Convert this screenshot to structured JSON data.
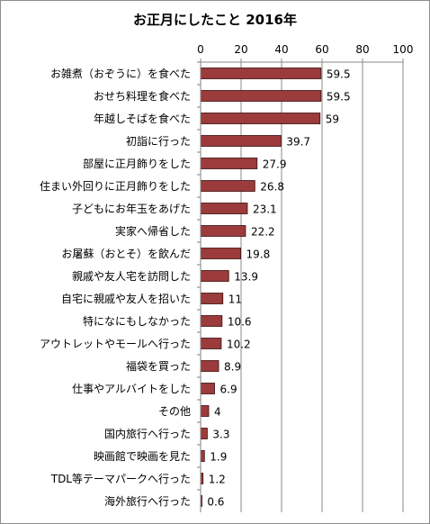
{
  "chart_data": {
    "type": "bar",
    "orientation": "horizontal",
    "title": "お正月にしたこと 2016年",
    "xlim": [
      0,
      100
    ],
    "xticks": [
      0,
      20,
      40,
      60,
      80,
      100
    ],
    "grid": true,
    "bar_color": "#9b3b3b",
    "categories": [
      "お雑煮（おぞうに）を食べた",
      "おせち料理を食べた",
      "年越しそばを食べた",
      "初詣に行った",
      "部屋に正月飾りをした",
      "住まい外回りに正月飾りをした",
      "子どもにお年玉をあげた",
      "実家へ帰省した",
      "お屠蘇（おとそ）を飲んだ",
      "親戚や友人宅を訪問した",
      "自宅に親戚や友人を招いた",
      "特になにもしなかった",
      "アウトレットやモールへ行った",
      "福袋を買った",
      "仕事やアルバイトをした",
      "その他",
      "国内旅行へ行った",
      "映画館で映画を見た",
      "TDL等テーマパークへ行った",
      "海外旅行へ行った"
    ],
    "values": [
      59.5,
      59.5,
      59,
      39.7,
      27.9,
      26.8,
      23.1,
      22.2,
      19.8,
      13.9,
      11,
      10.6,
      10.2,
      8.9,
      6.9,
      4,
      3.3,
      1.9,
      1.2,
      0.6
    ]
  }
}
